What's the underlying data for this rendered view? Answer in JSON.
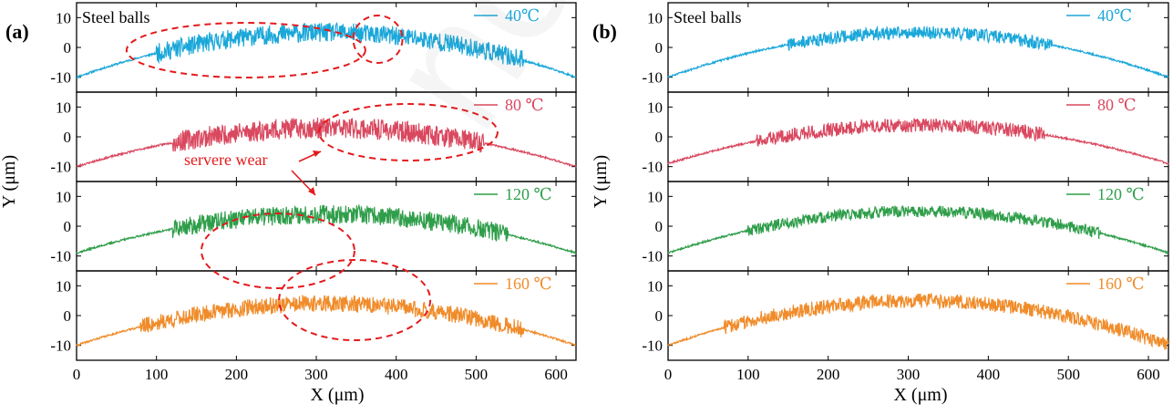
{
  "chart_data": [
    {
      "type": "line",
      "panel_label": "(a)",
      "sample_label": "Steel balls",
      "xlabel": "X (μm)",
      "ylabel": "Y (μm)",
      "xlim": [
        0,
        625
      ],
      "ylim": [
        -15,
        15
      ],
      "xticks": [
        0,
        100,
        200,
        300,
        400,
        500,
        600
      ],
      "yticks": [
        -10,
        0,
        10
      ],
      "annotation": "servere wear",
      "series": [
        {
          "name": "40℃",
          "color": "#1aa7d9",
          "arc_peak": 5,
          "arc_end": -10,
          "noise_range": [
            100,
            560
          ],
          "noise_amp": 3.2,
          "seed": 11
        },
        {
          "name": "80 ℃",
          "color": "#d9485f",
          "arc_peak": 3,
          "arc_end": -10,
          "noise_range": [
            120,
            510
          ],
          "noise_amp": 3.5,
          "seed": 23
        },
        {
          "name": "120 ℃",
          "color": "#2f9e4a",
          "arc_peak": 4,
          "arc_end": -9,
          "noise_range": [
            120,
            540
          ],
          "noise_amp": 3.2,
          "seed": 37
        },
        {
          "name": "160 ℃",
          "color": "#f08c2a",
          "arc_peak": 4,
          "arc_end": -10,
          "noise_range": [
            80,
            560
          ],
          "noise_amp": 2.8,
          "seed": 41
        }
      ]
    },
    {
      "type": "line",
      "panel_label": "(b)",
      "sample_label": "Steel balls",
      "xlabel": "X (μm)",
      "ylabel": "Y (μm)",
      "xlim": [
        0,
        625
      ],
      "ylim": [
        -15,
        15
      ],
      "xticks": [
        0,
        100,
        200,
        300,
        400,
        500,
        600
      ],
      "yticks": [
        -10,
        0,
        10
      ],
      "series": [
        {
          "name": "40℃",
          "color": "#1aa7d9",
          "arc_peak": 5,
          "arc_end": -10,
          "noise_range": [
            150,
            480
          ],
          "noise_amp": 2.2,
          "seed": 51
        },
        {
          "name": "80 ℃",
          "color": "#d9485f",
          "arc_peak": 4,
          "arc_end": -9,
          "noise_range": [
            110,
            470
          ],
          "noise_amp": 2.4,
          "seed": 63
        },
        {
          "name": "120 ℃",
          "color": "#2f9e4a",
          "arc_peak": 5,
          "arc_end": -9,
          "noise_range": [
            100,
            540
          ],
          "noise_amp": 2.0,
          "seed": 71
        },
        {
          "name": "160 ℃",
          "color": "#f08c2a",
          "arc_peak": 5,
          "arc_end": -10,
          "noise_range": [
            70,
            625
          ],
          "noise_amp": 2.4,
          "seed": 83
        }
      ]
    }
  ]
}
